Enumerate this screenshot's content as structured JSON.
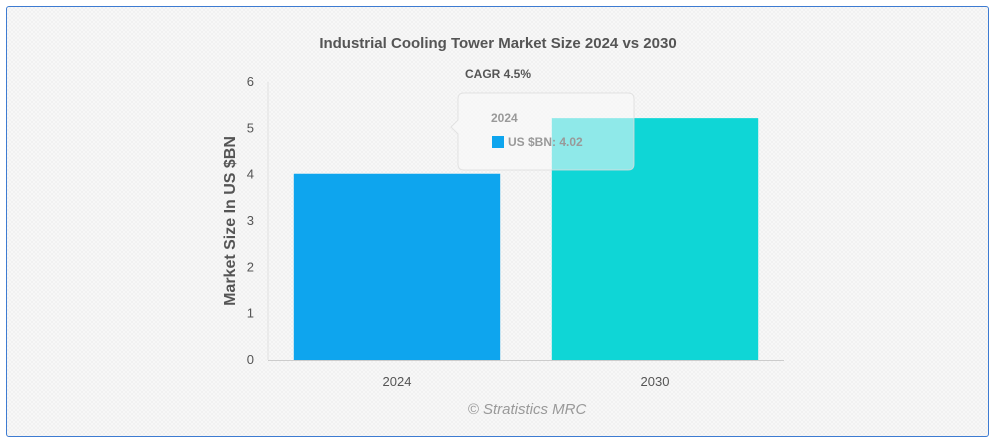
{
  "chart_data": {
    "type": "bar",
    "title": "Industrial Cooling Tower Market Size 2024 vs 2030",
    "subtitle": "CAGR 4.5%",
    "xlabel": "",
    "ylabel": "Market Size In US $BN",
    "categories": [
      "2024",
      "2030"
    ],
    "values": [
      4.02,
      5.22
    ],
    "colors": [
      "#0ea5ee",
      "#0fd6d6"
    ],
    "ylim": [
      0,
      6
    ],
    "yticks": [
      "0",
      "1",
      "2",
      "3",
      "4",
      "5",
      "6"
    ],
    "grid": false,
    "legend": "none"
  },
  "tooltip": {
    "title": "2024",
    "label": "US $BN: 4.02",
    "swatch_color": "#0ea5ee"
  },
  "credit": "© Stratistics MRC"
}
